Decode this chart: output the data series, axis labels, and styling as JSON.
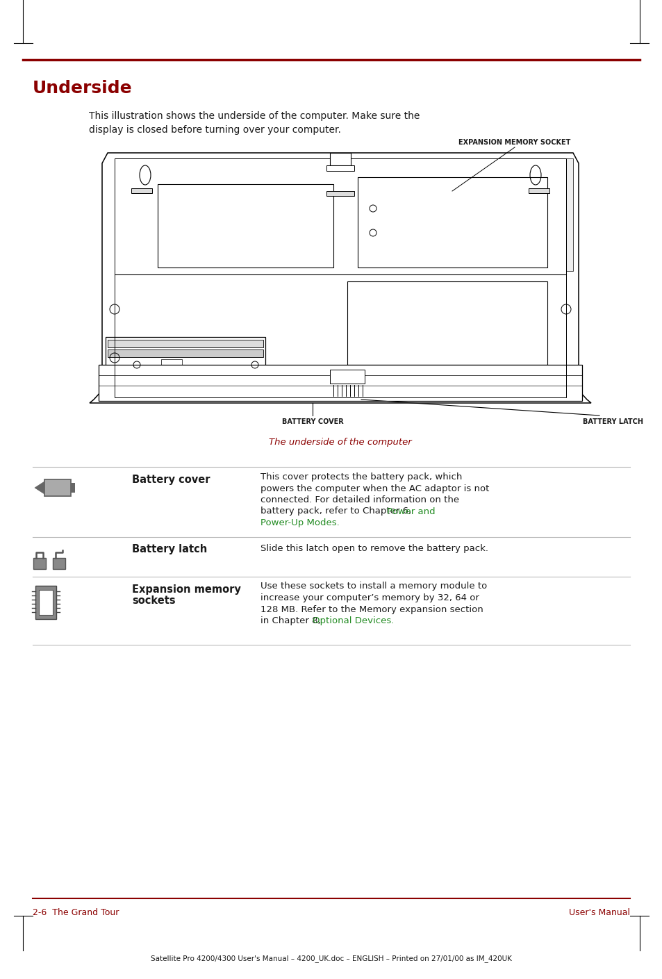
{
  "title": "Underside",
  "title_color": "#8B0000",
  "bg_color": "#ffffff",
  "top_rule_color": "#8B0000",
  "intro_line1": "This illustration shows the underside of the computer. Make sure the",
  "intro_line2": "display is closed before turning over your computer.",
  "diagram_caption": "The underside of the computer",
  "diagram_caption_color": "#8B0000",
  "label_expansion": "EXPANSION MEMORY SOCKET",
  "label_battery_cover": "BATTERY COVER",
  "label_battery_latch": "BATTERY LATCH",
  "row0_term": "Battery cover",
  "row0_desc_lines": [
    "This cover protects the battery pack, which",
    "powers the computer when the AC adaptor is not",
    "connected. For detailed information on the",
    "battery pack, refer to Chapter 6, "
  ],
  "row0_link1": "Power and",
  "row0_link2": "Power-Up Modes",
  "row0_link_color": "#228B22",
  "row1_term": "Battery latch",
  "row1_desc": "Slide this latch open to remove the battery pack.",
  "row2_term1": "Expansion memory",
  "row2_term2": "sockets",
  "row2_desc_lines": [
    "Use these sockets to install a memory module to",
    "increase your computer’s memory by 32, 64 or",
    "128 MB. Refer to the Memory expansion section",
    "in Chapter 8, "
  ],
  "row2_link": "Optional Devices",
  "row2_link_color": "#228B22",
  "footer_left": "2-6  The Grand Tour",
  "footer_right": "User's Manual",
  "footer_color": "#8B0000",
  "bottom_note_pre": "Satellite Pro 4200/4300 User's Manual – 4200_UK.doc – ENGLISH – Printed on 27/01/00 as ",
  "bottom_note_bold": "IM_420UK",
  "sep_color": "#bbbbbb",
  "icon_color": "#666666",
  "text_color": "#1a1a1a",
  "label_fontsize": 7.0,
  "body_fontsize": 9.5,
  "term_fontsize": 10.5
}
